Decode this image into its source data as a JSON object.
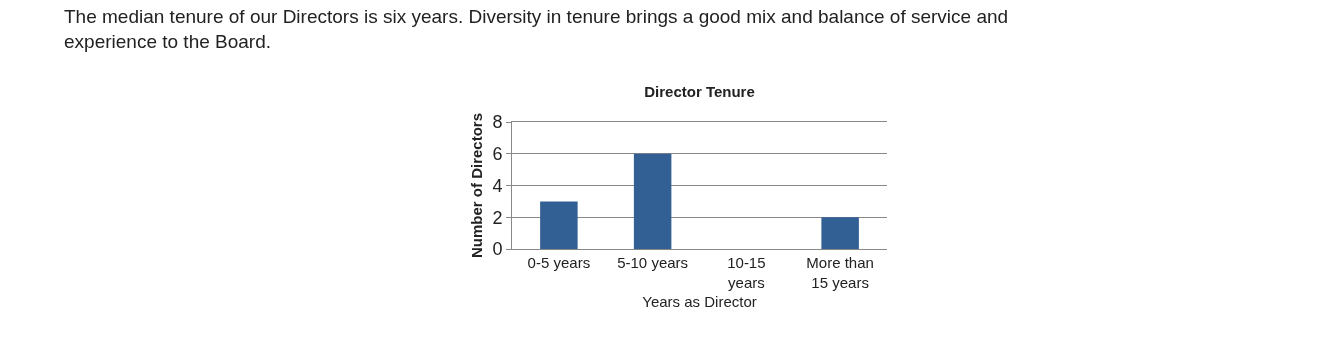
{
  "chart_data": {
    "type": "bar",
    "title": "Director Tenure",
    "xlabel": "Years as Director",
    "ylabel": "Number of Directors",
    "categories": [
      "0-5 years",
      "5-10 years",
      "10-15 years",
      "More than 15 years"
    ],
    "values": [
      3,
      6,
      0,
      2
    ],
    "color": "#336094",
    "ylim": [
      0,
      8
    ],
    "yticks": [
      0,
      2,
      4,
      6,
      8
    ],
    "grid": "y",
    "legend": false,
    "annotations": [
      "The median tenure of our Directors is six years. Diversity in tenure brings a good mix and balance of service and experience to the Board."
    ]
  }
}
